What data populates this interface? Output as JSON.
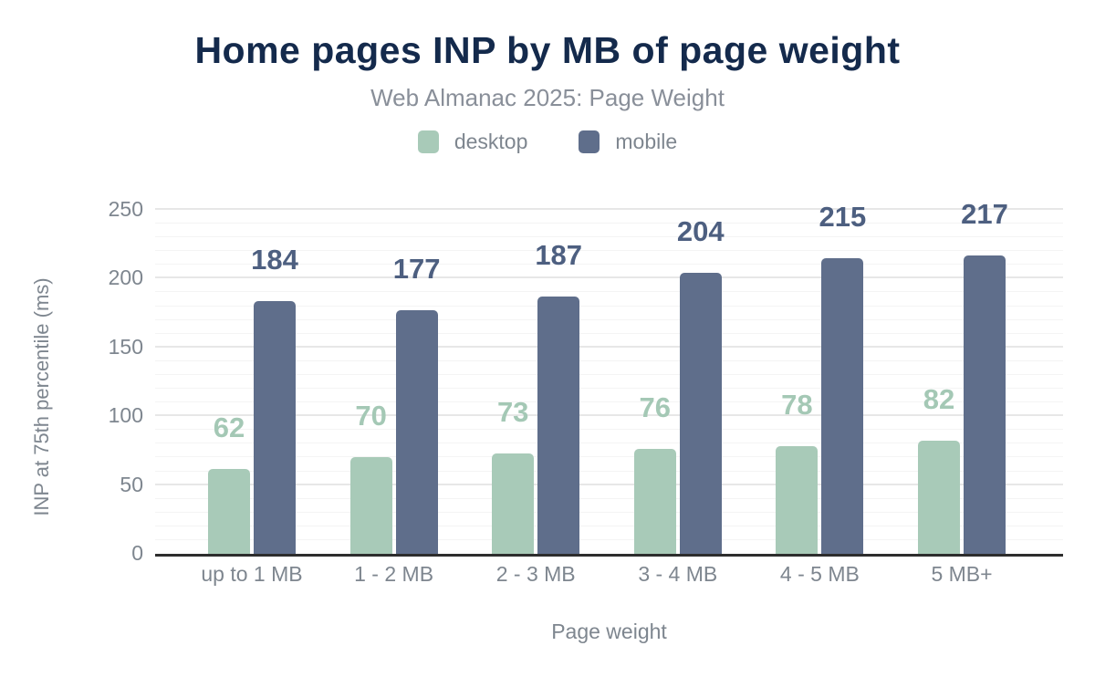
{
  "title": "Home pages INP by MB of page weight",
  "subtitle": "Web Almanac 2025: Page Weight",
  "colors": {
    "title": "#142a4c",
    "subtitle": "#898f99",
    "axis_text": "#7e868f",
    "baseline": "#2d2d2d"
  },
  "chart_data": {
    "type": "bar",
    "title": "Home pages INP by MB of page weight",
    "subtitle": "Web Almanac 2025: Page Weight",
    "categories": [
      "up to 1 MB",
      "1 - 2 MB",
      "2 - 3 MB",
      "3 - 4 MB",
      "4 - 5 MB",
      "5 MB+"
    ],
    "series": [
      {
        "name": "desktop",
        "color": "#a8cab8",
        "label_color": "#a4c8b5",
        "values": [
          62,
          70,
          73,
          76,
          78,
          82
        ]
      },
      {
        "name": "mobile",
        "color": "#5f6e8b",
        "label_color": "#4d5f80",
        "values": [
          184,
          177,
          187,
          204,
          215,
          217
        ]
      }
    ],
    "xlabel": "Page weight",
    "ylabel": "INP at 75th percentile (ms)",
    "ylim": [
      0,
      250
    ],
    "yticks": [
      0,
      50,
      100,
      150,
      200,
      250
    ],
    "minor_grid_step": 10,
    "grid": true,
    "data_labels": true,
    "legend_position": "top"
  }
}
